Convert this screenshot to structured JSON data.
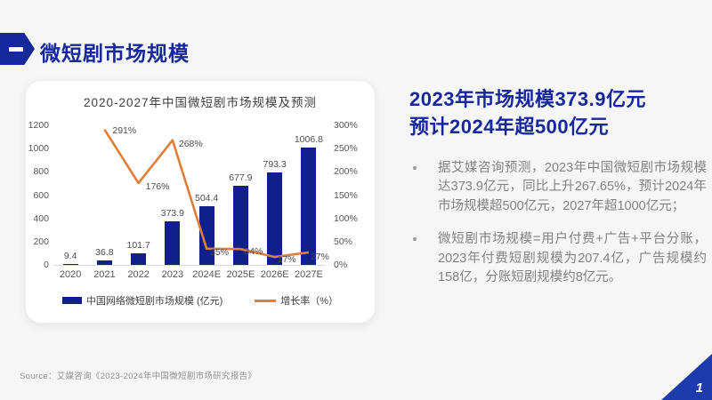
{
  "header": {
    "badge": "一",
    "title": "微短剧市场规模"
  },
  "panel": {
    "heading_line1": "2023年市场规模373.9亿元",
    "heading_line2": "预计2024年超500亿元",
    "bullets": [
      "据艾媒咨询预测，2023年中国微短剧市场规模达373.9亿元，同比上升267.65%，预计2024年市场规模超500亿元，2027年超1000亿元；",
      "微短剧市场规模=用户付费+广告+平台分账，2023年付费短剧规模为207.4亿，广告规模约158亿，分账短剧规模约8亿元。"
    ]
  },
  "footer": {
    "source": "Source：艾媒咨询《2023-2024年中国微短剧市场研究报告》",
    "page_number": "1"
  },
  "colors": {
    "bar": "#101f8c",
    "line": "#e07e38",
    "accent_blue": "#16289b",
    "corner_blue": "#1d3bad"
  },
  "chart_data": {
    "type": "bar",
    "subtype": "bar+line combo",
    "title": "2020-2027年中国微短剧市场规模及预测",
    "categories": [
      "2020",
      "2021",
      "2022",
      "2023",
      "2024E",
      "2025E",
      "2026E",
      "2027E"
    ],
    "series": [
      {
        "name": "中国网络微短剧市场规模 (亿元)",
        "type": "bar",
        "axis": "left",
        "values": [
          9.4,
          36.8,
          101.7,
          373.9,
          504.4,
          677.9,
          793.3,
          1006.8
        ],
        "color": "#101f8c"
      },
      {
        "name": "增长率（%）",
        "type": "line",
        "axis": "right",
        "values": [
          null,
          291,
          176,
          268,
          35,
          34,
          17,
          27
        ],
        "label_suffix": "%",
        "color": "#e07e38"
      }
    ],
    "left_axis": {
      "min": 0,
      "max": 1200,
      "step": 200
    },
    "right_axis": {
      "min": 0,
      "max": 300,
      "step": 50,
      "suffix": "%"
    },
    "grid": false,
    "legend_position": "bottom"
  }
}
